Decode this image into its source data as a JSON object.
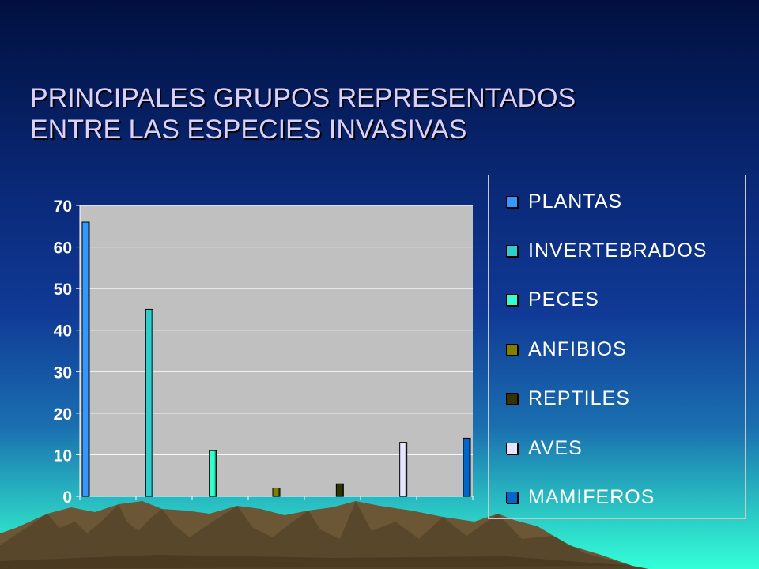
{
  "slide": {
    "title_lines": [
      "PRINCIPALES GRUPOS REPRESENTADOS",
      "ENTRE LAS ESPECIES INVASIVAS"
    ]
  },
  "chart_data": {
    "type": "bar",
    "categories": [
      "PLANTAS",
      "INVERTEBRADOS",
      "PECES",
      "ANFIBIOS",
      "REPTILES",
      "AVES",
      "MAMIFEROS"
    ],
    "values": [
      66,
      45,
      11,
      2,
      3,
      13,
      14
    ],
    "colors": [
      "#3399ff",
      "#33cccc",
      "#33ffcc",
      "#808000",
      "#333300",
      "#e6e6ff",
      "#0066cc"
    ],
    "ylim": [
      0,
      70
    ],
    "yticks": [
      "0",
      "10",
      "20",
      "30",
      "40",
      "50",
      "60",
      "70"
    ],
    "grid": true,
    "legend_position": "right",
    "plot_background": "#c0c0c0"
  }
}
